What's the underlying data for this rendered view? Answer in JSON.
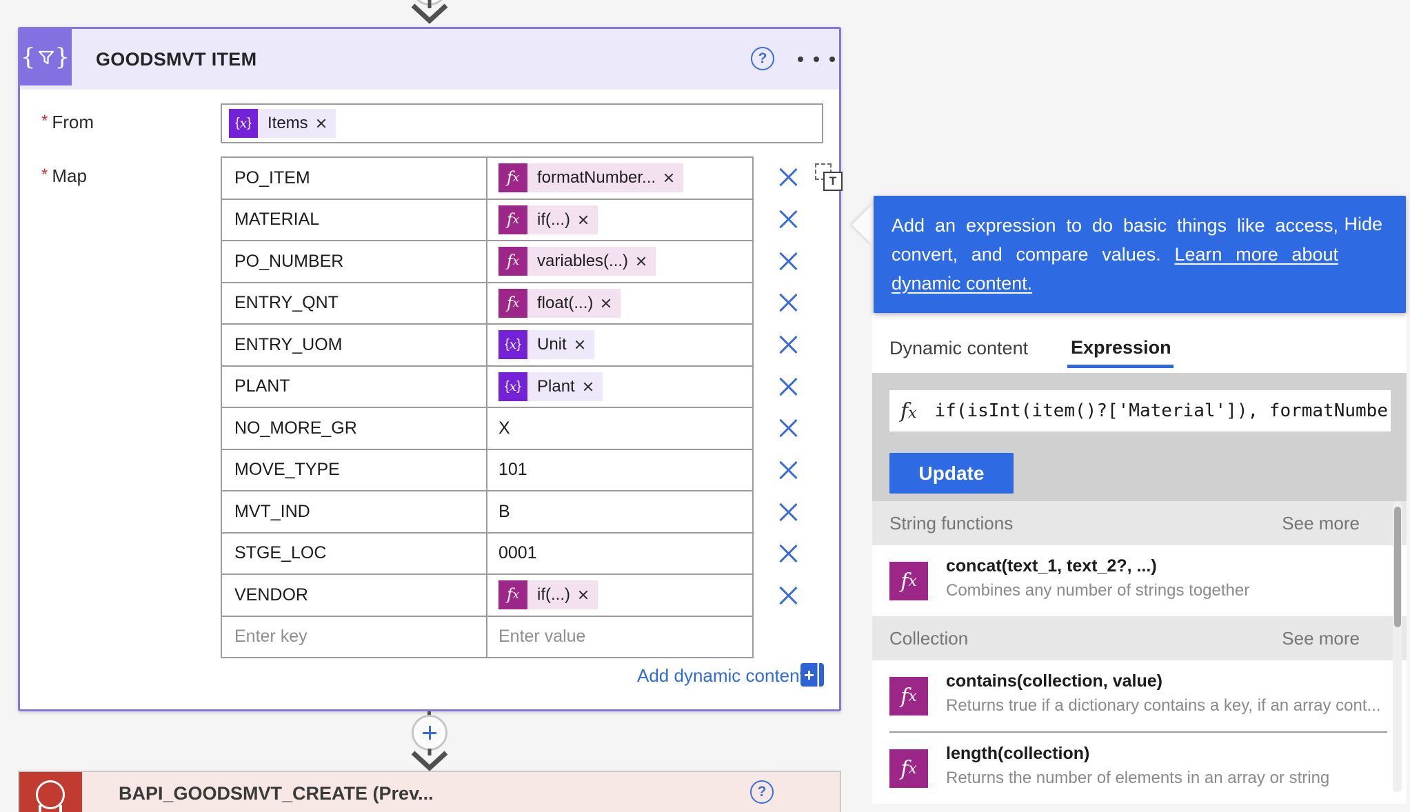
{
  "colors": {
    "card_border_purple": "#8578dc",
    "header_lavender": "#ece9fa",
    "icon_tile_purple": "#8471e1",
    "variable_token_purple": "#7322d8",
    "expression_token_magenta": "#9c2788",
    "callout_blue": "#2e6ae1",
    "link_blue": "#2e6bd9",
    "delete_x_blue": "#3a6bd8",
    "required_red": "#d13438",
    "sap_tile_red": "#c13b31",
    "bottom_header_pink": "#f8e8e5"
  },
  "card": {
    "title": "GOODSMVT ITEM",
    "required_mark": "*",
    "from": {
      "label": "From",
      "token": {
        "label": "Items"
      }
    },
    "map": {
      "label": "Map",
      "rows": [
        {
          "key": "PO_ITEM",
          "value": {
            "type": "fx",
            "label": "formatNumber..."
          }
        },
        {
          "key": "MATERIAL",
          "value": {
            "type": "fx",
            "label": "if(...)"
          }
        },
        {
          "key": "PO_NUMBER",
          "value": {
            "type": "fx",
            "label": "variables(...)"
          }
        },
        {
          "key": "ENTRY_QNT",
          "value": {
            "type": "fx",
            "label": "float(...)"
          }
        },
        {
          "key": "ENTRY_UOM",
          "value": {
            "type": "var",
            "label": "Unit"
          }
        },
        {
          "key": "PLANT",
          "value": {
            "type": "var",
            "label": "Plant"
          }
        },
        {
          "key": "NO_MORE_GR",
          "value": {
            "type": "text",
            "label": "X"
          }
        },
        {
          "key": "MOVE_TYPE",
          "value": {
            "type": "text",
            "label": "101"
          }
        },
        {
          "key": "MVT_IND",
          "value": {
            "type": "text",
            "label": "B"
          }
        },
        {
          "key": "STGE_LOC",
          "value": {
            "type": "text",
            "label": "0001"
          }
        },
        {
          "key": "VENDOR",
          "value": {
            "type": "fx",
            "label": "if(...)"
          }
        },
        {
          "key_placeholder": "Enter key",
          "value_placeholder": "Enter value",
          "value": {
            "type": "placeholder"
          }
        }
      ]
    },
    "add_dynamic_content_label": "Add dynamic content"
  },
  "bottom_card": {
    "title": "BAPI_GOODSMVT_CREATE (Prev..."
  },
  "panel": {
    "callout": {
      "line1": "Add an expression to do basic things like access,",
      "line2_text": "convert, and compare values.",
      "line2_link": "Learn more about",
      "line3_link": "dynamic content.",
      "hide_label": "Hide"
    },
    "tabs": [
      {
        "label": "Dynamic content",
        "active": false
      },
      {
        "label": "Expression",
        "active": true
      }
    ],
    "expression_input": {
      "value": "if(isInt(item()?['Material']), formatNumber(i",
      "icon": "fx"
    },
    "update_label": "Update",
    "sections": [
      {
        "header": "String functions",
        "see_more": "See more",
        "functions": [
          {
            "name": "concat(text_1, text_2?, ...)",
            "description": "Combines any number of strings together"
          }
        ]
      },
      {
        "header": "Collection",
        "see_more": "See more",
        "functions": [
          {
            "name": "contains(collection, value)",
            "description": "Returns true if a dictionary contains a key, if an array cont..."
          },
          {
            "name": "length(collection)",
            "description": "Returns the number of elements in an array or string"
          }
        ]
      }
    ]
  }
}
